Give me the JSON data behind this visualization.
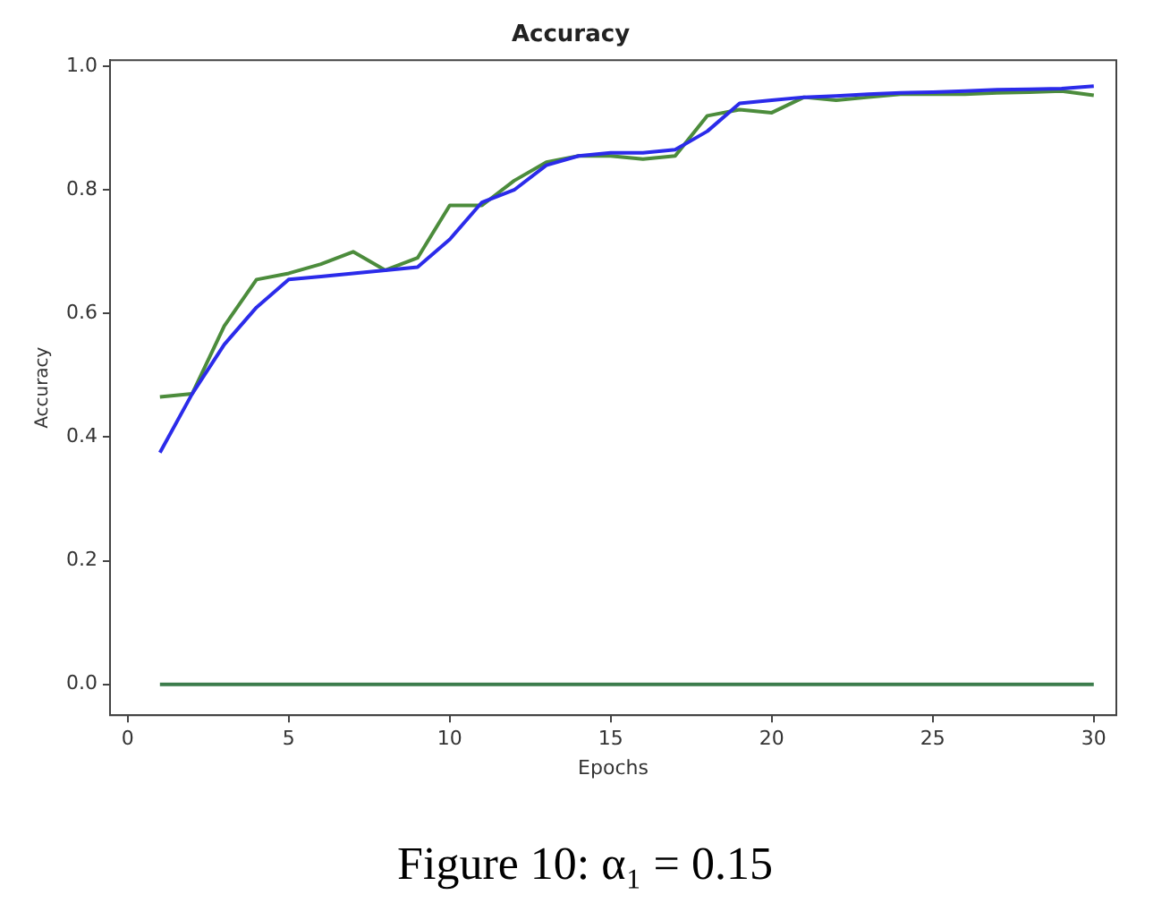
{
  "chart_data": {
    "type": "line",
    "title": "Accuracy",
    "xlabel": "Epochs",
    "ylabel": "Accuracy",
    "x": [
      1,
      2,
      3,
      4,
      5,
      6,
      7,
      8,
      9,
      10,
      11,
      12,
      13,
      14,
      15,
      16,
      17,
      18,
      19,
      20,
      21,
      22,
      23,
      24,
      25,
      26,
      27,
      28,
      29,
      30
    ],
    "series": [
      {
        "color": "#2b2bea",
        "values": [
          0.375,
          0.47,
          0.55,
          0.61,
          0.655,
          0.66,
          0.665,
          0.67,
          0.675,
          0.72,
          0.78,
          0.8,
          0.84,
          0.855,
          0.86,
          0.86,
          0.865,
          0.895,
          0.94,
          0.945,
          0.95,
          0.952,
          0.955,
          0.957,
          0.958,
          0.96,
          0.962,
          0.963,
          0.964,
          0.968
        ]
      },
      {
        "color": "#4c8c3c",
        "values": [
          0.465,
          0.47,
          0.58,
          0.655,
          0.665,
          0.68,
          0.7,
          0.67,
          0.69,
          0.775,
          0.775,
          0.815,
          0.845,
          0.855,
          0.855,
          0.85,
          0.855,
          0.92,
          0.93,
          0.925,
          0.95,
          0.945,
          0.95,
          0.955,
          0.955,
          0.955,
          0.957,
          0.958,
          0.96,
          0.953
        ]
      },
      {
        "color": "#3c7c4c",
        "values": [
          0,
          0,
          0,
          0,
          0,
          0,
          0,
          0,
          0,
          0,
          0,
          0,
          0,
          0,
          0,
          0,
          0,
          0,
          0,
          0,
          0,
          0,
          0,
          0,
          0,
          0,
          0,
          0,
          0,
          0
        ]
      }
    ],
    "xlim": [
      -0.55,
      30.7
    ],
    "ylim": [
      -0.05,
      1.01
    ],
    "xticks": [
      0,
      5,
      10,
      15,
      20,
      25,
      30
    ],
    "yticks": [
      {
        "value": 0,
        "label": "0.0"
      },
      {
        "value": 0.2,
        "label": "0.2"
      },
      {
        "value": 0.4,
        "label": "0.4"
      },
      {
        "value": 0.6,
        "label": "0.6"
      },
      {
        "value": 0.8,
        "label": "0.8"
      },
      {
        "value": 1,
        "label": "1.0"
      }
    ],
    "grid": false,
    "legend": false,
    "marker": "none",
    "line_style": "solid",
    "annotations": [
      "Figure 10: α₁ = 0.15"
    ]
  }
}
